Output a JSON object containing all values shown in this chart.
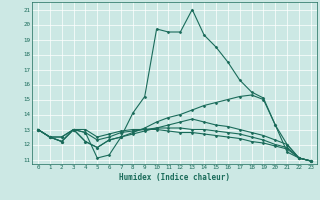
{
  "xlabel": "Humidex (Indice chaleur)",
  "bg_color": "#cce8e4",
  "line_color": "#1a6b5a",
  "xlim": [
    -0.5,
    23.5
  ],
  "ylim": [
    10.7,
    21.5
  ],
  "yticks": [
    11,
    12,
    13,
    14,
    15,
    16,
    17,
    18,
    19,
    20,
    21
  ],
  "xticks": [
    0,
    1,
    2,
    3,
    4,
    5,
    6,
    7,
    8,
    9,
    10,
    11,
    12,
    13,
    14,
    15,
    16,
    17,
    18,
    19,
    20,
    21,
    22,
    23
  ],
  "lines": [
    {
      "x": [
        0,
        1,
        2,
        3,
        4,
        5,
        6,
        7,
        8,
        9,
        10,
        11,
        12,
        13,
        14,
        15,
        16,
        17,
        18,
        19,
        20,
        21,
        22,
        23
      ],
      "y": [
        13,
        12.5,
        12.2,
        13,
        12.8,
        11.1,
        11.3,
        12.5,
        14.1,
        15.2,
        19.7,
        19.5,
        19.5,
        21.0,
        19.3,
        18.5,
        17.5,
        16.3,
        15.5,
        15.1,
        13.3,
        12.0,
        11.1,
        10.9
      ]
    },
    {
      "x": [
        0,
        1,
        2,
        3,
        4,
        5,
        6,
        7,
        8,
        9,
        10,
        11,
        12,
        13,
        14,
        15,
        16,
        17,
        18,
        19,
        20,
        21,
        22,
        23
      ],
      "y": [
        13,
        12.5,
        12.2,
        13,
        12.2,
        11.8,
        12.3,
        12.5,
        12.8,
        13.1,
        13.5,
        13.8,
        14.0,
        14.3,
        14.6,
        14.8,
        15.0,
        15.2,
        15.3,
        15.0,
        13.3,
        11.5,
        11.1,
        10.9
      ]
    },
    {
      "x": [
        0,
        1,
        2,
        3,
        4,
        5,
        6,
        7,
        8,
        9,
        10,
        11,
        12,
        13,
        14,
        15,
        16,
        17,
        18,
        19,
        20,
        21,
        22,
        23
      ],
      "y": [
        13,
        12.5,
        12.2,
        13,
        12.2,
        11.8,
        12.3,
        12.5,
        12.7,
        12.9,
        13.1,
        13.3,
        13.5,
        13.7,
        13.5,
        13.3,
        13.2,
        13.0,
        12.8,
        12.6,
        12.3,
        12.0,
        11.1,
        10.9
      ]
    },
    {
      "x": [
        0,
        1,
        2,
        3,
        4,
        5,
        6,
        7,
        8,
        9,
        10,
        11,
        12,
        13,
        14,
        15,
        16,
        17,
        18,
        19,
        20,
        21,
        22,
        23
      ],
      "y": [
        13,
        12.5,
        12.5,
        13,
        12.8,
        12.3,
        12.5,
        12.8,
        12.9,
        13.0,
        13.1,
        13.1,
        13.1,
        13.0,
        13.0,
        12.9,
        12.8,
        12.7,
        12.5,
        12.3,
        12.0,
        11.8,
        11.1,
        10.9
      ]
    },
    {
      "x": [
        0,
        1,
        2,
        3,
        4,
        5,
        6,
        7,
        8,
        9,
        10,
        11,
        12,
        13,
        14,
        15,
        16,
        17,
        18,
        19,
        20,
        21,
        22,
        23
      ],
      "y": [
        13,
        12.5,
        12.5,
        13.0,
        13.0,
        12.5,
        12.7,
        12.9,
        13.0,
        13.0,
        13.0,
        12.9,
        12.8,
        12.8,
        12.7,
        12.6,
        12.5,
        12.4,
        12.2,
        12.1,
        11.9,
        11.7,
        11.1,
        10.9
      ]
    }
  ]
}
